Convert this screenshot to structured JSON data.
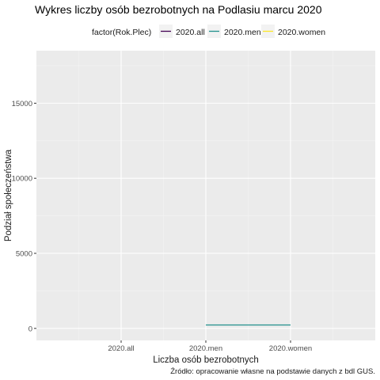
{
  "chart_data": {
    "type": "line",
    "title": "Wykres liczby osób bezrobotnych na Podlasiu marcu 2020",
    "xlabel": "Liczba osób bezrobotnych",
    "ylabel": "Podział społeczeństwa",
    "caption": "Źródło: opracowanie własne na podstawie danych z bdl GUS.",
    "categories": [
      "2020.all",
      "2020.men",
      "2020.women"
    ],
    "ylim": [
      -800,
      18500
    ],
    "y_ticks": [
      0,
      5000,
      10000,
      15000
    ],
    "y_tick_labels": [
      "0",
      "5000",
      "10000",
      "15000"
    ],
    "grid": true,
    "legend": {
      "title": "factor(Rok.Plec)",
      "placement": "top",
      "entries": [
        {
          "label": "2020.all",
          "color": "#440154"
        },
        {
          "label": "2020.men",
          "color": "#21908C"
        },
        {
          "label": "2020.women",
          "color": "#FDE725"
        }
      ]
    },
    "series": [
      {
        "name": "2020.men",
        "color": "#21908C",
        "points": [
          {
            "x": "2020.men",
            "y": 230
          },
          {
            "x": "2020.women",
            "y": 230
          }
        ]
      }
    ]
  }
}
